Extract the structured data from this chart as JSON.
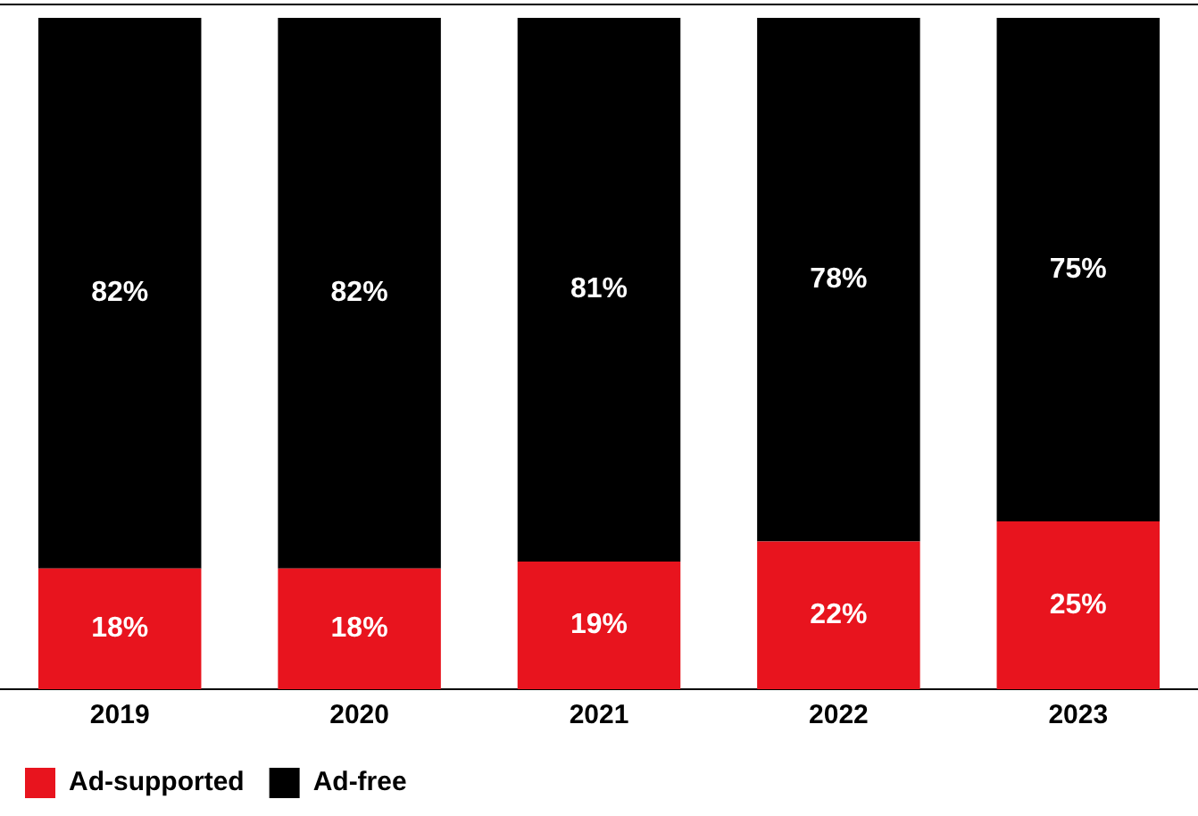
{
  "chart_data": {
    "type": "bar",
    "categories": [
      "2019",
      "2020",
      "2021",
      "2022",
      "2023"
    ],
    "series": [
      {
        "name": "Ad-supported",
        "color": "#e8141e",
        "values": [
          18,
          18,
          19,
          22,
          25
        ],
        "value_labels": [
          "18%",
          "18%",
          "19%",
          "22%",
          "25%"
        ]
      },
      {
        "name": "Ad-free",
        "color": "#000000",
        "values": [
          82,
          82,
          81,
          78,
          75
        ],
        "value_labels": [
          "82%",
          "82%",
          "81%",
          "78%",
          "75%"
        ]
      }
    ],
    "stacked": true,
    "tick_labels": "x",
    "grid": false,
    "legend": "bottom left"
  }
}
